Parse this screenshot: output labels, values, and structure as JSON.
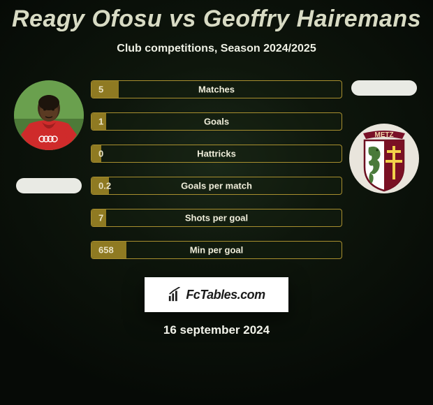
{
  "title": "Reagy Ofosu vs Geoffry Hairemans",
  "subtitle": "Club competitions, Season 2024/2025",
  "colors": {
    "title_text": "#d8dbc4",
    "subtitle_text": "#eef0e4",
    "bar_border": "#a88f2f",
    "bar_fill": "#8f7a22",
    "bar_bg": "rgba(20,30,15,0.45)",
    "bar_label": "#f0eedb",
    "bar_value": "#e9e2c6",
    "pill_left": "#e9eae4",
    "pill_right": "#e9eae4",
    "badge_bg": "#ffffff",
    "date_text": "#f2f3ea"
  },
  "player_left": {
    "avatar": {
      "bg": "#5a7a46",
      "shirt": "#cf2b2b",
      "skin": "#3e2a1a",
      "sponsor": "Audi"
    }
  },
  "player_right": {
    "crest": {
      "name": "FC Metz",
      "text": "METZ",
      "bg": "#e9e5dc",
      "left_fill": "#ffffff",
      "right_fill": "#7a1024",
      "dragon": "#4a7a3a",
      "cross": "#f2d24a",
      "border": "#6b0f20"
    }
  },
  "bars": [
    {
      "label": "Matches",
      "value": "5",
      "fill_pct": 11
    },
    {
      "label": "Goals",
      "value": "1",
      "fill_pct": 6
    },
    {
      "label": "Hattricks",
      "value": "0",
      "fill_pct": 4
    },
    {
      "label": "Goals per match",
      "value": "0.2",
      "fill_pct": 7
    },
    {
      "label": "Shots per goal",
      "value": "7",
      "fill_pct": 6
    },
    {
      "label": "Min per goal",
      "value": "658",
      "fill_pct": 14
    }
  ],
  "footer": {
    "brand": "FcTables.com",
    "date": "16 september 2024"
  }
}
